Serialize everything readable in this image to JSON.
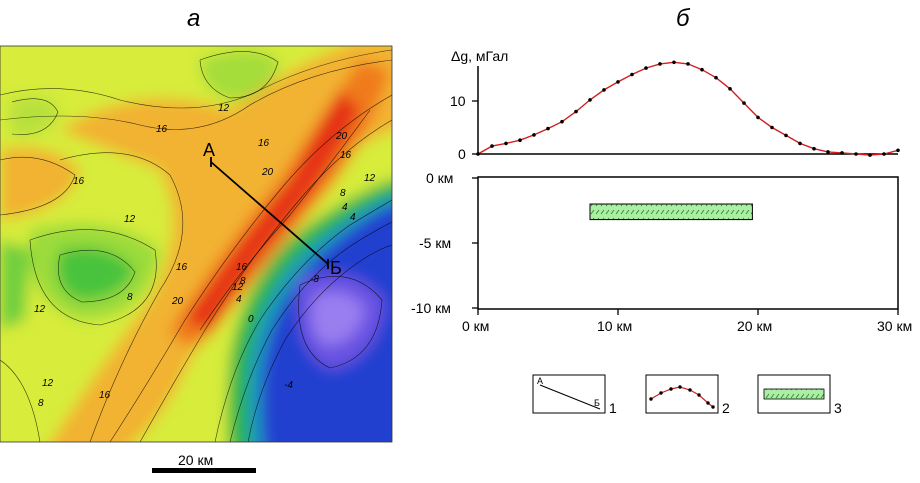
{
  "panels": {
    "left_letter": "а",
    "right_letter": "б"
  },
  "map": {
    "profile_start_label": "А",
    "profile_end_label": "Б",
    "scale_bar_label": "20 км",
    "contour_labels": [
      "12",
      "16",
      "16",
      "20",
      "16",
      "20",
      "16",
      "12",
      "8",
      "4",
      "4",
      "16",
      "16",
      "20",
      "8",
      "12",
      "12",
      "12",
      "4",
      "0",
      "8",
      "-8",
      "-4",
      "12",
      "8",
      "16"
    ]
  },
  "profile_chart": {
    "ylabel": "Δg, мГал",
    "yticks": [
      "0",
      "10"
    ]
  },
  "section": {
    "depth_labels": [
      "0 км",
      "-5 км",
      "-10 км"
    ],
    "distance_labels": [
      "0 км",
      "10 км",
      "20 км",
      "30 км"
    ],
    "body_start_km": 8,
    "body_end_km": 19.6,
    "body_top_km": -2.0,
    "body_bottom_km": -3.2
  },
  "legend": {
    "items": [
      {
        "number": "1",
        "mini_start": "А",
        "mini_end": "Б"
      },
      {
        "number": "2"
      },
      {
        "number": "3"
      }
    ]
  },
  "chart_data": {
    "type": "line",
    "title": "",
    "xlabel": "",
    "ylabel": "Δg, мГал",
    "xlim": [
      0,
      30
    ],
    "ylim": [
      0,
      17
    ],
    "x": [
      0,
      1,
      2,
      3,
      4,
      5,
      6,
      7,
      8,
      9,
      10,
      11,
      12,
      13,
      14,
      15,
      16,
      17,
      18,
      19,
      20,
      21,
      22,
      23,
      24,
      25,
      26,
      27,
      28,
      29,
      30
    ],
    "values": [
      0,
      1.5,
      2.0,
      2.6,
      3.6,
      4.8,
      6.1,
      8.0,
      10.2,
      12.1,
      13.6,
      15.0,
      16.2,
      17.0,
      17.3,
      17.0,
      15.9,
      14.4,
      12.3,
      9.6,
      6.9,
      5.0,
      3.5,
      2.0,
      1.0,
      0.4,
      0.2,
      0.0,
      -0.2,
      0.0,
      0.7
    ]
  }
}
